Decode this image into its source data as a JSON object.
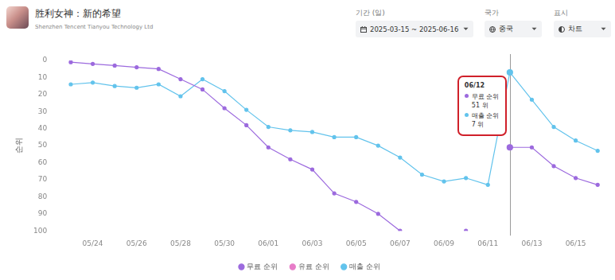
{
  "header": {
    "title": "胜利女神：新的希望",
    "subtitle": "Shenzhen Tencent Tianyou Technology Ltd",
    "controls": [
      {
        "label": "기간 (일)",
        "value": "2025-03-15 ~ 2025-06-16"
      },
      {
        "label": "국가",
        "value": "중국"
      },
      {
        "label": "표시",
        "value": "차트"
      }
    ]
  },
  "chart_data": {
    "type": "line",
    "y_label": "순위",
    "categories": [
      null,
      "05/24",
      null,
      "05/26",
      null,
      "05/28",
      null,
      "05/30",
      null,
      "06/01",
      null,
      "06/03",
      null,
      "06/05",
      null,
      "06/07",
      null,
      "06/09",
      null,
      "06/11",
      null,
      "06/13",
      null,
      "06/15",
      null
    ],
    "series": [
      {
        "name": "무료 순위",
        "color": "#9c6ade",
        "marker": "circle",
        "line_style": "solid",
        "values": [
          1,
          2,
          3,
          4,
          5,
          11,
          17,
          28,
          38,
          51,
          58,
          64,
          78,
          83,
          90,
          100,
          null,
          null,
          100,
          null,
          51,
          51,
          62,
          69,
          73
        ]
      },
      {
        "name": "유료 순위",
        "color": "#e77cc8",
        "marker": "circle",
        "line_style": "solid",
        "values": [
          null,
          null,
          null,
          null,
          null,
          null,
          null,
          null,
          null,
          null,
          null,
          null,
          null,
          null,
          null,
          null,
          null,
          null,
          null,
          null,
          null,
          null,
          null,
          null,
          null
        ]
      },
      {
        "name": "매출 순위",
        "color": "#62c3ec",
        "marker": "circle",
        "line_style": "solid",
        "values": [
          14,
          13,
          15,
          16,
          14,
          21,
          11,
          18,
          29,
          39,
          41,
          42,
          45,
          45,
          50,
          57,
          67,
          71,
          69,
          73,
          7,
          23,
          39,
          47,
          53
        ]
      }
    ],
    "ylim": [
      100,
      0
    ],
    "yticks": [
      0,
      10,
      20,
      30,
      40,
      50,
      60,
      70,
      80,
      90,
      100
    ],
    "grid": false,
    "legend": "bottom",
    "annotation": {
      "title": "06/12",
      "unit": "위",
      "items": [
        {
          "series": "무료 순위",
          "value": 51
        },
        {
          "series": "매출 순위",
          "value": 7
        }
      ]
    }
  }
}
